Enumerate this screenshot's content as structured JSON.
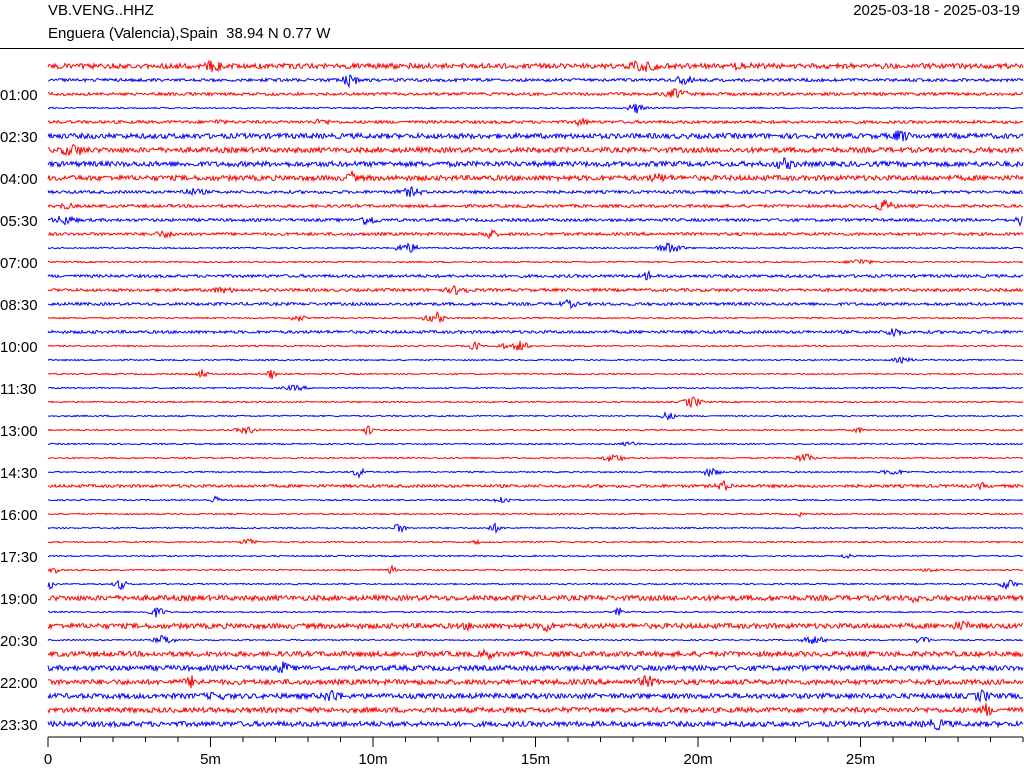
{
  "header": {
    "station": "VB.VENG..HHZ",
    "location": "Enguera (Valencia),Spain  38.94 N 0.77 W",
    "date_range": "2025-03-18 - 2025-03-19"
  },
  "colors": {
    "trace_a": "#ff0000",
    "trace_b": "#0000ff",
    "axis": "#000000"
  },
  "chart_data": {
    "type": "line",
    "title": "VB.VENG..HHZ",
    "subtitle": "Enguera (Valencia),Spain  38.94 N 0.77 W",
    "xlabel": "",
    "ylabel": "",
    "xlim_minutes": [
      0,
      30
    ],
    "x_ticks": [
      "0",
      "5m",
      "10m",
      "15m",
      "20m",
      "25m"
    ],
    "x_tick_values": [
      0,
      5,
      10,
      15,
      20,
      25
    ],
    "minor_tick_step_minutes": 1,
    "row_minutes": 30,
    "y_tick_labels": [
      "01:00",
      "02:30",
      "04:00",
      "05:30",
      "07:00",
      "08:30",
      "10:00",
      "11:30",
      "13:00",
      "14:30",
      "16:00",
      "17:30",
      "19:00",
      "20:30",
      "22:00",
      "23:30"
    ],
    "trace_colors_alternating": [
      "red",
      "blue"
    ],
    "rows": 48,
    "row_noise_level": [
      3,
      2,
      2,
      1,
      2,
      3,
      3,
      3,
      3,
      2,
      2,
      2,
      2,
      1,
      1,
      2,
      2,
      2,
      1,
      2,
      1,
      1,
      1,
      1,
      1,
      1,
      1,
      1,
      1,
      1,
      2,
      1,
      1,
      1,
      1,
      1,
      1,
      1,
      3,
      1,
      3,
      1,
      3,
      3,
      3,
      3,
      3,
      3
    ]
  }
}
